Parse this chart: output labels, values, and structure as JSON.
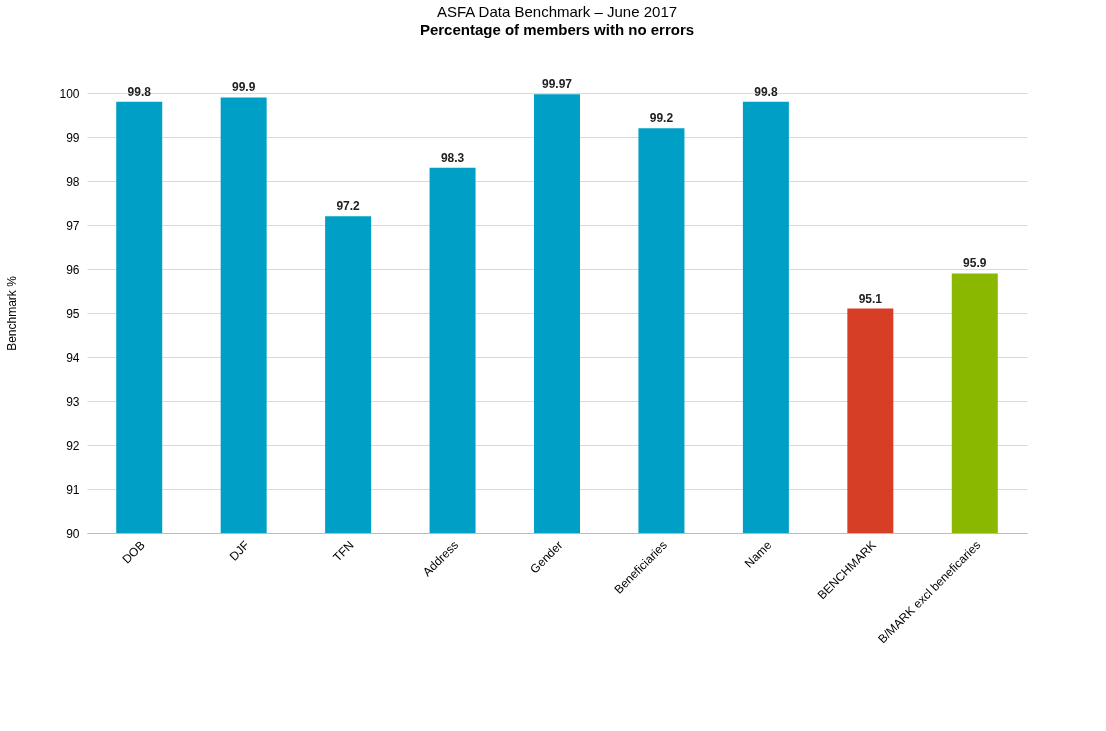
{
  "chart_data": {
    "type": "bar",
    "title": "ASFA Data Benchmark – June 2017",
    "subtitle": "Percentage of members with no errors",
    "ylabel": "Benchmark %",
    "categories": [
      "DOB",
      "DJF",
      "TFN",
      "Address",
      "Gender",
      "Beneficiaries",
      "Name",
      "BENCHMARK",
      "B/MARK excl beneficaries"
    ],
    "values": [
      99.8,
      99.9,
      97.2,
      98.3,
      99.97,
      99.2,
      99.8,
      95.1,
      95.9
    ],
    "colors": [
      "#00a0c6",
      "#00a0c6",
      "#00a0c6",
      "#00a0c6",
      "#00a0c6",
      "#00a0c6",
      "#00a0c6",
      "#d63f26",
      "#8ab800"
    ],
    "ylim": [
      90,
      100
    ],
    "yticks": [
      90,
      91,
      92,
      93,
      94,
      95,
      96,
      97,
      98,
      99,
      100
    ],
    "grid": "y",
    "data_labels": true
  }
}
